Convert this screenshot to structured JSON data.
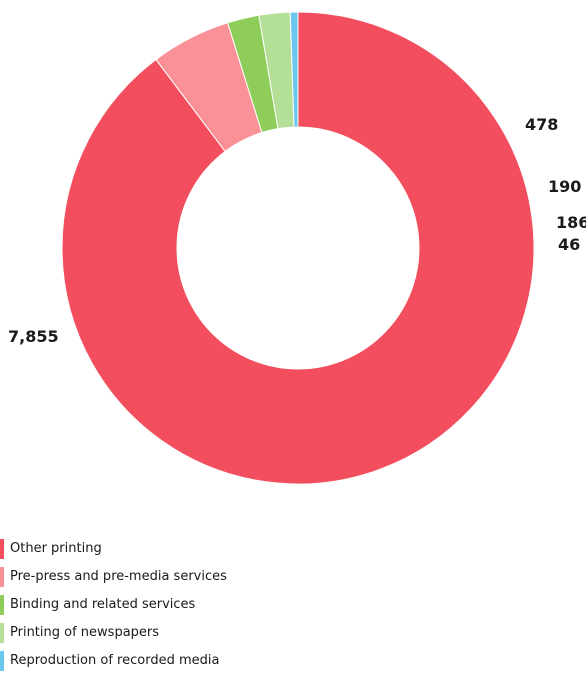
{
  "chart_data": {
    "type": "pie",
    "donut": true,
    "start_angle_deg": 90,
    "direction": "clockwise",
    "series": [
      {
        "values": [
          7855,
          478,
          190,
          186,
          46
        ]
      }
    ],
    "slices": [
      {
        "label": "Other printing",
        "value": 7855,
        "display": "7,855",
        "color": "#f24e5d"
      },
      {
        "label": "Pre-press and pre-media services",
        "value": 478,
        "display": "478",
        "color": "#f99197"
      },
      {
        "label": "Binding and related services",
        "value": 190,
        "display": "190",
        "color": "#8fcd5b"
      },
      {
        "label": "Printing of newspapers",
        "value": 186,
        "display": "186",
        "color": "#b3df96"
      },
      {
        "label": "Reproduction of recorded media",
        "value": 46,
        "display": "46",
        "color": "#6ac8ee"
      }
    ],
    "legend_position": "bottom-left"
  }
}
